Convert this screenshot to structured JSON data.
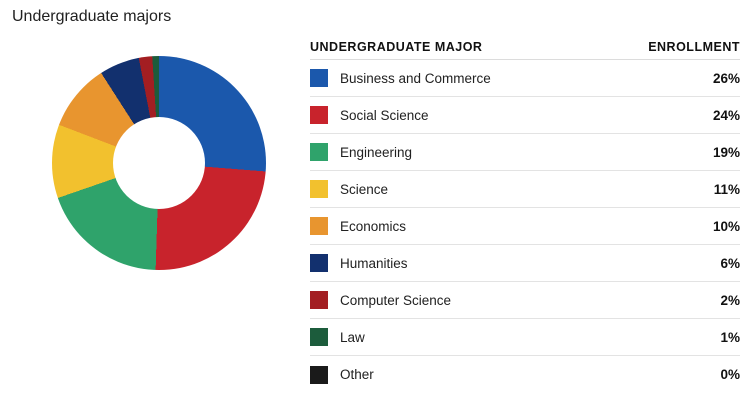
{
  "page": {
    "title": "Undergraduate majors"
  },
  "table": {
    "header_major": "UNDERGRADUATE MAJOR",
    "header_enrollment": "ENROLLMENT"
  },
  "chart_data": {
    "type": "pie",
    "subtype": "donut",
    "title": "Undergraduate majors",
    "categories": [
      "Business and Commerce",
      "Social Science",
      "Engineering",
      "Science",
      "Economics",
      "Humanities",
      "Computer Science",
      "Law",
      "Other"
    ],
    "values": [
      26,
      24,
      19,
      11,
      10,
      6,
      2,
      1,
      0
    ],
    "value_labels": [
      "26%",
      "24%",
      "19%",
      "11%",
      "10%",
      "6%",
      "2%",
      "1%",
      "0%"
    ],
    "colors": [
      "#1B58AC",
      "#C8232C",
      "#2FA36B",
      "#F2C12E",
      "#E8952F",
      "#12306E",
      "#A31E22",
      "#1C5C3C",
      "#1A1A1A"
    ],
    "legend_position": "right",
    "start_angle_deg": 0,
    "direction": "clockwise"
  }
}
